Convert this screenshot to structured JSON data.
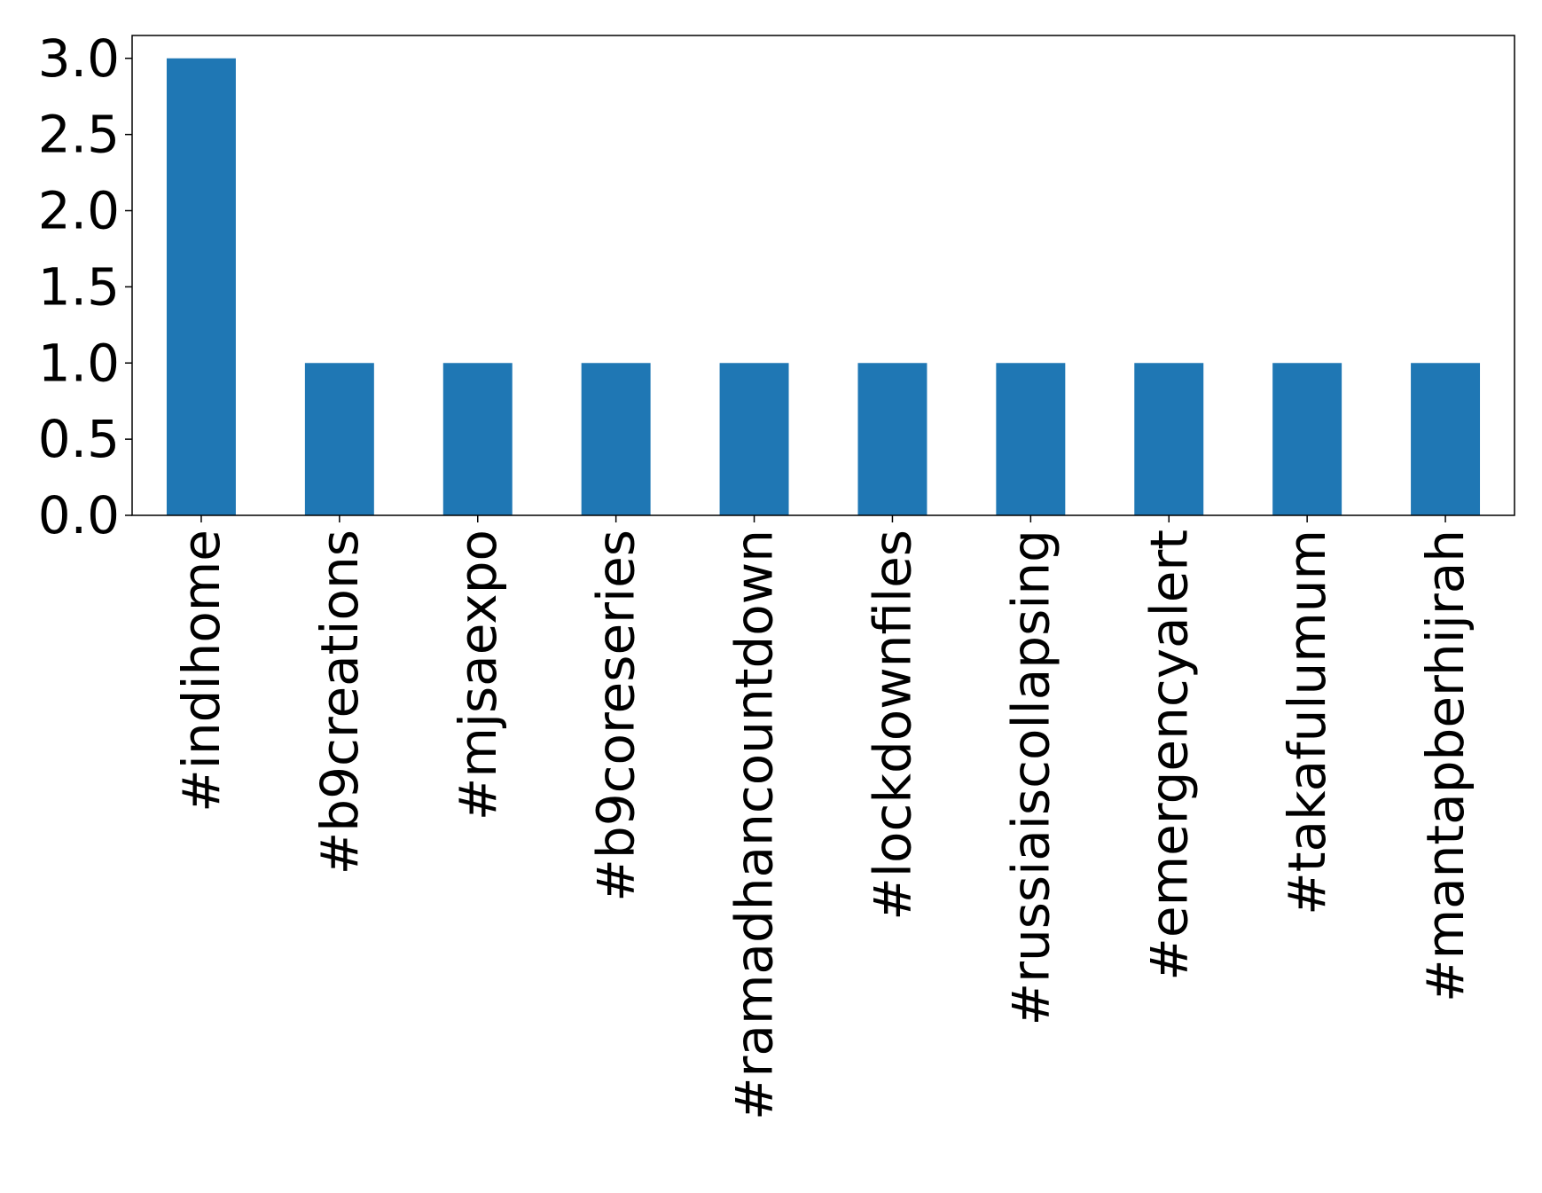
{
  "chart_data": {
    "type": "bar",
    "categories": [
      "#indihome",
      "#b9creations",
      "#mjsaexpo",
      "#b9coreseries",
      "#ramadhancountdown",
      "#lockdownfiles",
      "#russiaiscollapsing",
      "#emergencyalert",
      "#takafulumum",
      "#mantapberhijrah"
    ],
    "values": [
      3,
      1,
      1,
      1,
      1,
      1,
      1,
      1,
      1,
      1
    ],
    "color": "#1f77b4",
    "ylim": [
      0,
      3.15
    ],
    "yticks": [
      {
        "value": 0,
        "label": "0.0"
      },
      {
        "value": 0.5,
        "label": "0.5"
      },
      {
        "value": 1,
        "label": "1.0"
      },
      {
        "value": 1.5,
        "label": "1.5"
      },
      {
        "value": 2,
        "label": "2.0"
      },
      {
        "value": 2.5,
        "label": "2.5"
      },
      {
        "value": 3,
        "label": "3.0"
      }
    ],
    "grid": false
  }
}
